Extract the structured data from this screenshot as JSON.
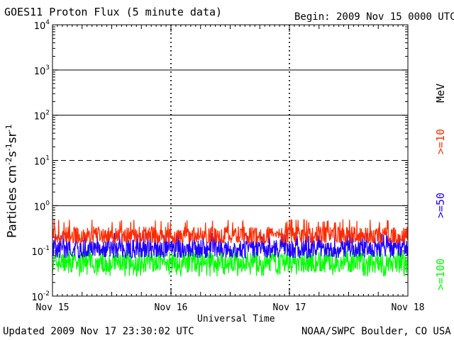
{
  "header": {
    "title": "GOES11 Proton Flux (5 minute data)",
    "begin": "Begin: 2009 Nov 15 0000 UTC"
  },
  "footer": {
    "updated": "Updated 2009 Nov 17 23:30:02 UTC",
    "credit": "NOAA/SWPC Boulder, CO USA"
  },
  "chart_data": {
    "type": "line",
    "title": "GOES11 Proton Flux (5 minute data)",
    "xlabel": "Universal Time",
    "ylabel_parts": [
      "Particles cm",
      "-2",
      "s",
      "-1",
      "sr",
      "-1"
    ],
    "y_scale": "log",
    "ylim": [
      0.01,
      10000
    ],
    "y_ticks": [
      {
        "base": "10",
        "exp": "-2"
      },
      {
        "base": "10",
        "exp": "-1"
      },
      {
        "base": "10",
        "exp": "0"
      },
      {
        "base": "10",
        "exp": "1"
      },
      {
        "base": "10",
        "exp": "2"
      },
      {
        "base": "10",
        "exp": "3"
      },
      {
        "base": "10",
        "exp": "4"
      }
    ],
    "x_tick_labels": [
      "Nov 15",
      "Nov 16",
      "Nov 17",
      "Nov 18"
    ],
    "xlim_days": [
      0,
      3
    ],
    "reference_lines": [
      {
        "y": 1,
        "style": "solid"
      },
      {
        "y": 10,
        "style": "dashed"
      },
      {
        "y": 100,
        "style": "solid"
      },
      {
        "y": 1000,
        "style": "solid"
      }
    ],
    "legend_unit": "MeV",
    "series": [
      {
        "name": ">=10",
        "color": "#ff2a00",
        "baseline": 0.22,
        "low": 0.15,
        "high": 0.5
      },
      {
        "name": ">=50",
        "color": "#1f00ff",
        "baseline": 0.11,
        "low": 0.07,
        "high": 0.25
      },
      {
        "name": ">=100",
        "color": "#00ff00",
        "baseline": 0.055,
        "low": 0.027,
        "high": 0.11
      }
    ]
  }
}
